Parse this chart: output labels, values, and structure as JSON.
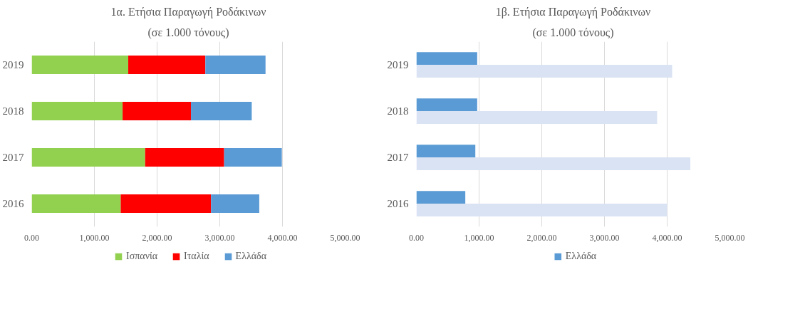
{
  "chart_data": [
    {
      "type": "bar",
      "orientation": "horizontal",
      "stacked": true,
      "title": "1α. Ετήσια Παραγωγή Ροδάκινων",
      "subtitle": "(σε 1.000 τόνους)",
      "categories": [
        "2019",
        "2018",
        "2017",
        "2016"
      ],
      "series": [
        {
          "name": "Ισπανία",
          "color": "#92d050",
          "values": [
            1540,
            1450,
            1810,
            1420
          ]
        },
        {
          "name": "Ιταλία",
          "color": "#ff0000",
          "values": [
            1230,
            1090,
            1260,
            1440
          ]
        },
        {
          "name": "Ελλάδα",
          "color": "#5b9bd5",
          "values": [
            960,
            970,
            920,
            770
          ]
        }
      ],
      "xlim": [
        0,
        5000
      ],
      "xticks": [
        {
          "value": 0,
          "label": "0.00"
        },
        {
          "value": 1000,
          "label": "1,000.00"
        },
        {
          "value": 2000,
          "label": "2,000.00"
        },
        {
          "value": 3000,
          "label": "3,000.00"
        },
        {
          "value": 4000,
          "label": "4,000.00"
        },
        {
          "value": 5000,
          "label": "5,000.00"
        }
      ],
      "grid": "x",
      "legend": "bottom"
    },
    {
      "type": "bar",
      "orientation": "horizontal",
      "title": "1β. Ετήσια Παραγωγή Ροδάκινων",
      "subtitle": "(σε 1.000 τόνους)",
      "categories": [
        "2019",
        "2018",
        "2017",
        "2016"
      ],
      "series": [
        {
          "name": "Ελλάδα",
          "color": "#5b9bd5",
          "values": [
            970,
            970,
            940,
            780
          ]
        },
        {
          "color": "#dae3f3",
          "values": [
            4080,
            3840,
            4370,
            4000
          ]
        }
      ],
      "xlim": [
        0,
        5000
      ],
      "xticks": [
        {
          "value": 0,
          "label": "0.00"
        },
        {
          "value": 1000,
          "label": "1,000.00"
        },
        {
          "value": 2000,
          "label": "2,000.00"
        },
        {
          "value": 3000,
          "label": "3,000.00"
        },
        {
          "value": 4000,
          "label": "4,000.00"
        },
        {
          "value": 5000,
          "label": "5,000.00"
        }
      ],
      "grid": "x",
      "legend": "bottom"
    }
  ]
}
